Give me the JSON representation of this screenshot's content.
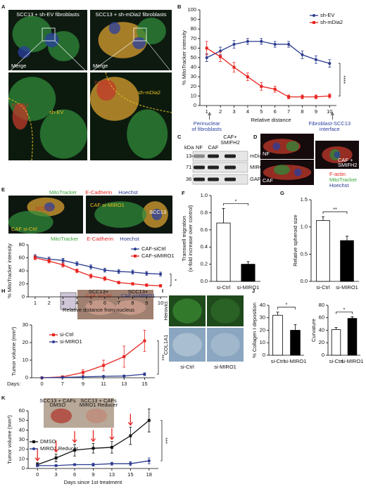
{
  "panel_letters": [
    "A",
    "B",
    "C",
    "D",
    "E",
    "F",
    "G",
    "H",
    "I",
    "J",
    "K"
  ],
  "panel_A": {
    "left_title": "SCC13 + sh-EV fibroblasts",
    "right_title": "SCC13 + sh-mDia2 fibroblasts",
    "merge_labels": [
      "Merge",
      "Merge"
    ],
    "left_zoom_labels": [
      "SCC13",
      "sh-EV"
    ],
    "right_zoom_labels": [
      "SCC13",
      "sh-mDia2"
    ]
  },
  "panel_C": {
    "unit": "kDa",
    "lanes": [
      "NF",
      "CAF",
      [
        "CAF+",
        "SMIFH2"
      ]
    ],
    "markers": [
      134,
      71,
      36
    ],
    "proteins": [
      "mDia2",
      "MIRO1",
      "GAPDH"
    ]
  },
  "panel_D": {
    "labels": [
      "NF",
      "CAF",
      [
        "CAF +",
        "SMIFH2"
      ]
    ],
    "legend": [
      {
        "text": "F-actin",
        "color": "#e8231f"
      },
      {
        "text": "MitoTracker",
        "color": "#3aa53a"
      },
      {
        "text": "Hoechst",
        "color": "#2b3b8f"
      }
    ]
  },
  "panel_E": {
    "stain_legend": [
      {
        "text": "MitoTracker",
        "color": "#3aa53a"
      },
      {
        "text": "E-Cadherin",
        "color": "#e8231f"
      },
      {
        "text": "Hoechst",
        "color": "#2b3b8f"
      }
    ],
    "image_labels": [
      "SCC13",
      "CAF si-Ctrl",
      "CAF si-MIRO1",
      "SCC13"
    ]
  },
  "panel_H": {
    "inset_labels": [
      [
        "SCC13+",
        "CAF si-Ctrl"
      ],
      [
        "SCC13+",
        "CAF si-MIRO1"
      ]
    ]
  },
  "panel_I": {
    "rows": [
      "Herovici",
      "COL1A1"
    ],
    "columns": [
      "si-Ctrl",
      "si-MIRO1"
    ]
  },
  "panel_K": {
    "inset_labels": [
      [
        "SCC13 + CAFs",
        "DMSO"
      ],
      [
        "SCC13 + CAFs",
        "MIRO1 Reducer"
      ]
    ]
  },
  "chart_data": [
    {
      "type": "line",
      "y_label": "% MitoTracker intensity",
      "x_label": "Relative distance",
      "categories": [
        "1",
        "2",
        "3",
        "4",
        "5",
        "6",
        "7",
        "8",
        "9",
        "10"
      ],
      "ylim": [
        0,
        100
      ],
      "yticks": [
        0,
        10,
        20,
        30,
        40,
        50,
        60,
        70,
        80,
        90,
        100
      ],
      "legend": "upper right",
      "series": [
        {
          "name": "sh-EV",
          "color": "#2b3b8f",
          "marker": "circle",
          "values": [
            50,
            57,
            64,
            67,
            67,
            64,
            64,
            53,
            48,
            44
          ],
          "errors": [
            4,
            4,
            4,
            3,
            3,
            3,
            3,
            4,
            4,
            4
          ]
        },
        {
          "name": "sh-mDia2",
          "color": "#e8231f",
          "marker": "square",
          "values": [
            60,
            51,
            40,
            30,
            20,
            17,
            9,
            9,
            9,
            10
          ],
          "errors": [
            7,
            5,
            5,
            4,
            4,
            3,
            2,
            2,
            2,
            2
          ]
        }
      ],
      "annotations": [
        "****",
        "Perinuclear",
        "of fibroblasts",
        "Fibroblast-SCC13",
        "interface"
      ]
    },
    {
      "type": "line",
      "y_label": "% MitoTracker intensity",
      "x_label": "Relative distance from nucleus",
      "categories": [
        "1",
        "2",
        "3",
        "4",
        "5",
        "6",
        "7",
        "8",
        "9",
        "10"
      ],
      "ylim": [
        0,
        80
      ],
      "yticks": [
        0,
        20,
        40,
        60,
        80
      ],
      "legend": "upper right",
      "series": [
        {
          "name": "CAF-siCtrl",
          "color": "#2b3b8f",
          "marker": "circle",
          "values": [
            62,
            58,
            56,
            51,
            46,
            41,
            39,
            38,
            36,
            35
          ],
          "errors": [
            3,
            3,
            3,
            3,
            3,
            3,
            3,
            3,
            3,
            3
          ]
        },
        {
          "name": "CAF-siMIRO1",
          "color": "#e8231f",
          "marker": "square",
          "values": [
            60,
            55,
            49,
            40,
            32,
            28,
            22,
            20,
            18,
            17
          ],
          "errors": [
            3,
            3,
            3,
            3,
            3,
            3,
            2,
            2,
            2,
            2
          ]
        }
      ],
      "annotations": [
        "*"
      ]
    },
    {
      "type": "bar",
      "y_label": [
        "Transwell migration",
        "(x-fold increase over control)"
      ],
      "categories": [
        "si-Ctrl",
        "si-MIRO1"
      ],
      "values": [
        0.68,
        0.2
      ],
      "errors": [
        0.17,
        0.03
      ],
      "colors": [
        "#ffffff",
        "#000000"
      ],
      "ylim": [
        0,
        1
      ],
      "yticks": [
        {
          "value": 0,
          "label": "0.0"
        },
        0.2,
        0.4,
        0.6,
        0.8,
        {
          "value": 1,
          "label": "1.0"
        }
      ],
      "annotations": [
        "*"
      ]
    },
    {
      "type": "bar",
      "y_label": "Relative spheroid size",
      "categories": [
        "si-Ctrl",
        "si-MIRO1"
      ],
      "values": [
        1.12,
        0.75
      ],
      "errors": [
        0.07,
        0.08
      ],
      "colors": [
        "#ffffff",
        "#000000"
      ],
      "ylim": [
        0,
        1.5
      ],
      "yticks": [
        {
          "value": 0,
          "label": "0.0"
        },
        0.5,
        {
          "value": 1,
          "label": "1.0"
        },
        1.5
      ],
      "annotations": [
        "**"
      ]
    },
    {
      "type": "line",
      "y_label": "Tumor volume (mm³)",
      "x_label": "Days:",
      "categories": [
        "0",
        "7",
        "9",
        "11",
        "13",
        "15"
      ],
      "ylim": [
        0,
        30
      ],
      "yticks": [
        0,
        10,
        20,
        30
      ],
      "legend": "upper left",
      "series": [
        {
          "name": "si-Ctrl",
          "color": "#e8231f",
          "marker": "square",
          "values": [
            0,
            0.5,
            3,
            7,
            12,
            21
          ],
          "errors": [
            0,
            0.3,
            1.5,
            3,
            6,
            6
          ]
        },
        {
          "name": "si-MIRO1",
          "color": "#2b3b8f",
          "marker": "circle",
          "values": [
            0,
            0.2,
            0.5,
            0.8,
            1,
            2
          ],
          "errors": [
            0,
            0.1,
            0.2,
            0.3,
            0.4,
            0.8
          ]
        }
      ],
      "annotations": [
        "***"
      ]
    },
    {
      "type": "bar",
      "y_label": "% Collagen I deposition",
      "categories": [
        "si-Ctrl",
        "si-MIRO1"
      ],
      "values": [
        32,
        20
      ],
      "errors": [
        2.5,
        4.5
      ],
      "colors": [
        "#ffffff",
        "#000000"
      ],
      "ylim": [
        0,
        40
      ],
      "yticks": [
        0,
        10,
        20,
        30,
        40
      ],
      "annotations": [
        "*"
      ]
    },
    {
      "type": "bar",
      "y_label": "Curvature",
      "categories": [
        "si-Ctrl",
        "si-MIRO1"
      ],
      "values": [
        41,
        59
      ],
      "errors": [
        3.5,
        2.5
      ],
      "colors": [
        "#ffffff",
        "#000000"
      ],
      "ylim": [
        0,
        80
      ],
      "yticks": [
        0,
        20,
        40,
        60,
        80
      ],
      "annotations": [
        "*"
      ]
    },
    {
      "type": "line",
      "y_label": "Tumor volume (mm³)",
      "x_label": "Days since 1st treatment",
      "categories": [
        "0",
        "3",
        "6",
        "9",
        "13",
        "15",
        "18"
      ],
      "ylim": [
        0,
        60
      ],
      "yticks": [
        0,
        10,
        20,
        30,
        40,
        50,
        60
      ],
      "legend": "center left",
      "series": [
        {
          "name": "DMSO",
          "color": "#111111",
          "marker": "square",
          "values": [
            4,
            11,
            19,
            21,
            22,
            34,
            50
          ],
          "errors": [
            2,
            4,
            6,
            5,
            6,
            9,
            12
          ]
        },
        {
          "name": "MIRO1 Reducer",
          "color": "#2b3b8f",
          "marker": "circle",
          "values": [
            3,
            3,
            4,
            4,
            5,
            5,
            8
          ],
          "errors": [
            1,
            1,
            1,
            1.5,
            1.5,
            2,
            3
          ]
        }
      ],
      "annotations": [
        "***"
      ]
    }
  ]
}
